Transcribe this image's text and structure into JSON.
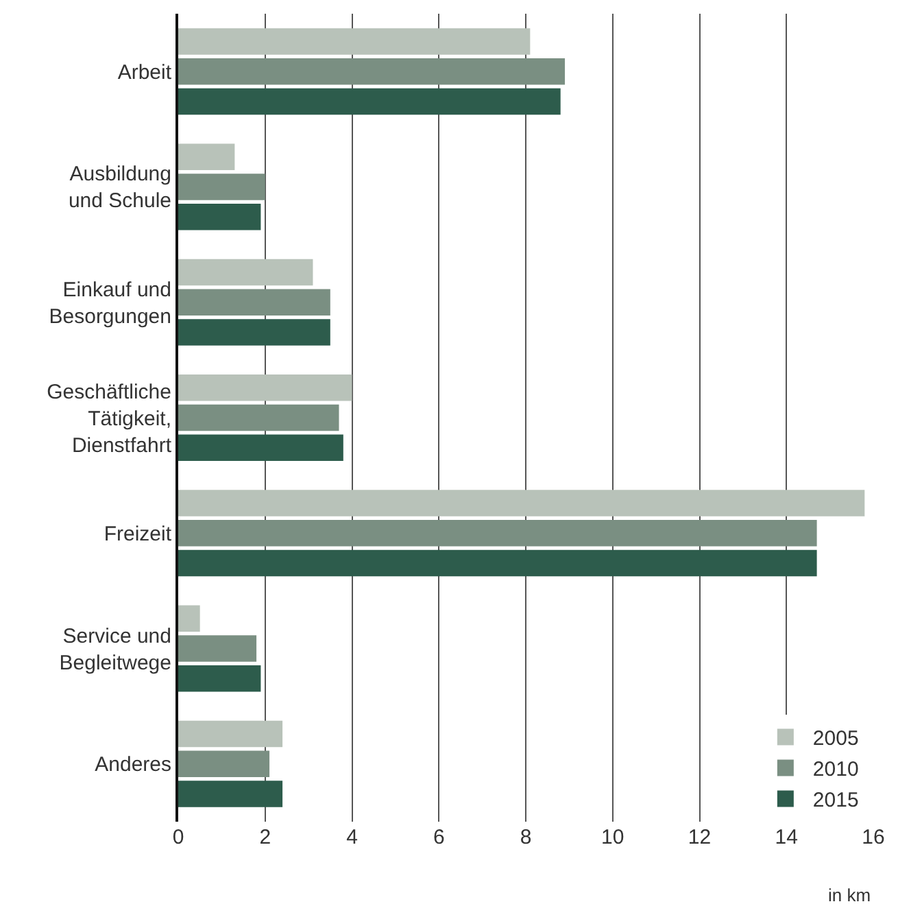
{
  "chart_data": {
    "type": "bar",
    "orientation": "horizontal",
    "categories": [
      "Arbeit",
      "Ausbildung\nund Schule",
      "Einkauf und\nBesorgungen",
      "Geschäftliche\nTätigkeit,\nDienstfahrt",
      "Freizeit",
      "Service und\nBegleitwege",
      "Anderes"
    ],
    "series": [
      {
        "name": "2005",
        "color": "#b8c2b9",
        "values": [
          8.1,
          1.3,
          3.1,
          4.0,
          15.8,
          0.5,
          2.4
        ]
      },
      {
        "name": "2010",
        "color": "#7a8f82",
        "values": [
          8.9,
          2.0,
          3.5,
          3.7,
          14.7,
          1.8,
          2.1
        ]
      },
      {
        "name": "2015",
        "color": "#2d5c4c",
        "values": [
          8.8,
          1.9,
          3.5,
          3.8,
          14.7,
          1.9,
          2.4
        ]
      }
    ],
    "xlabel": "in km",
    "xlim": [
      0,
      16
    ],
    "xticks": [
      0,
      2,
      4,
      6,
      8,
      10,
      12,
      14,
      16
    ],
    "grid": "x",
    "legend": "bottom right"
  }
}
